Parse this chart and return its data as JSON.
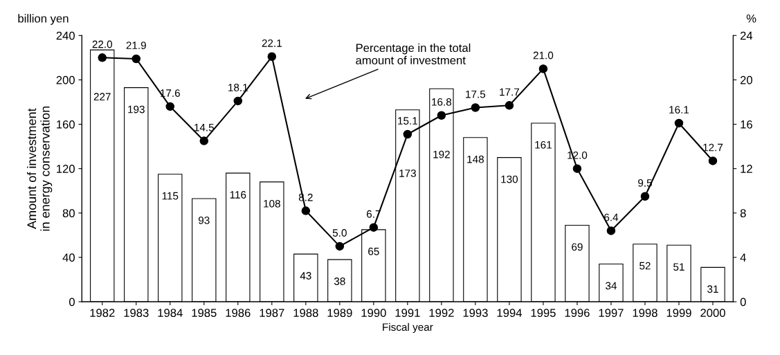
{
  "chart_data": {
    "type": "bar",
    "xlabel": "Fiscal year",
    "ylabel": "Amount of investment\nin energy conservation",
    "categories": [
      "1982",
      "1983",
      "1984",
      "1985",
      "1986",
      "1987",
      "1988",
      "1989",
      "1990",
      "1991",
      "1992",
      "1993",
      "1994",
      "1995",
      "1996",
      "1997",
      "1998",
      "1999",
      "2000"
    ],
    "series": [
      {
        "color": "#ffffff",
        "values": [
          227,
          193,
          115,
          93,
          116,
          108,
          43,
          38,
          65,
          173,
          192,
          148,
          130,
          161,
          69,
          34,
          52,
          51,
          31
        ]
      },
      {
        "type": "line",
        "axis": "y2",
        "color": "#000000",
        "marker": "circle",
        "line_style": "solid",
        "values": [
          22.0,
          21.9,
          17.6,
          14.5,
          18.1,
          22.1,
          8.2,
          5.0,
          6.7,
          15.1,
          16.8,
          17.5,
          17.7,
          21.0,
          12.0,
          6.4,
          9.5,
          16.1,
          12.7
        ],
        "value_labels": [
          "22.0",
          "21.9",
          "17.6",
          "14.5",
          "18.1",
          "22.1",
          "8.2",
          "5.0",
          "6.7",
          "15.1",
          "16.8",
          "17.5",
          "17.7",
          "21.0",
          "12.0",
          "6.4",
          "9.5",
          "16.1",
          "12.7"
        ]
      }
    ],
    "ylim": [
      0,
      240
    ],
    "yticks": [
      0,
      40,
      80,
      120,
      160,
      200,
      240
    ],
    "y2lim": [
      0,
      24
    ],
    "y2ticks": [
      0,
      4,
      8,
      12,
      16,
      20,
      24
    ],
    "data_labels": true,
    "grid": false,
    "legend": false,
    "annotations": [
      "Percentage in the total\namount of investment",
      "billion yen",
      "%"
    ]
  }
}
